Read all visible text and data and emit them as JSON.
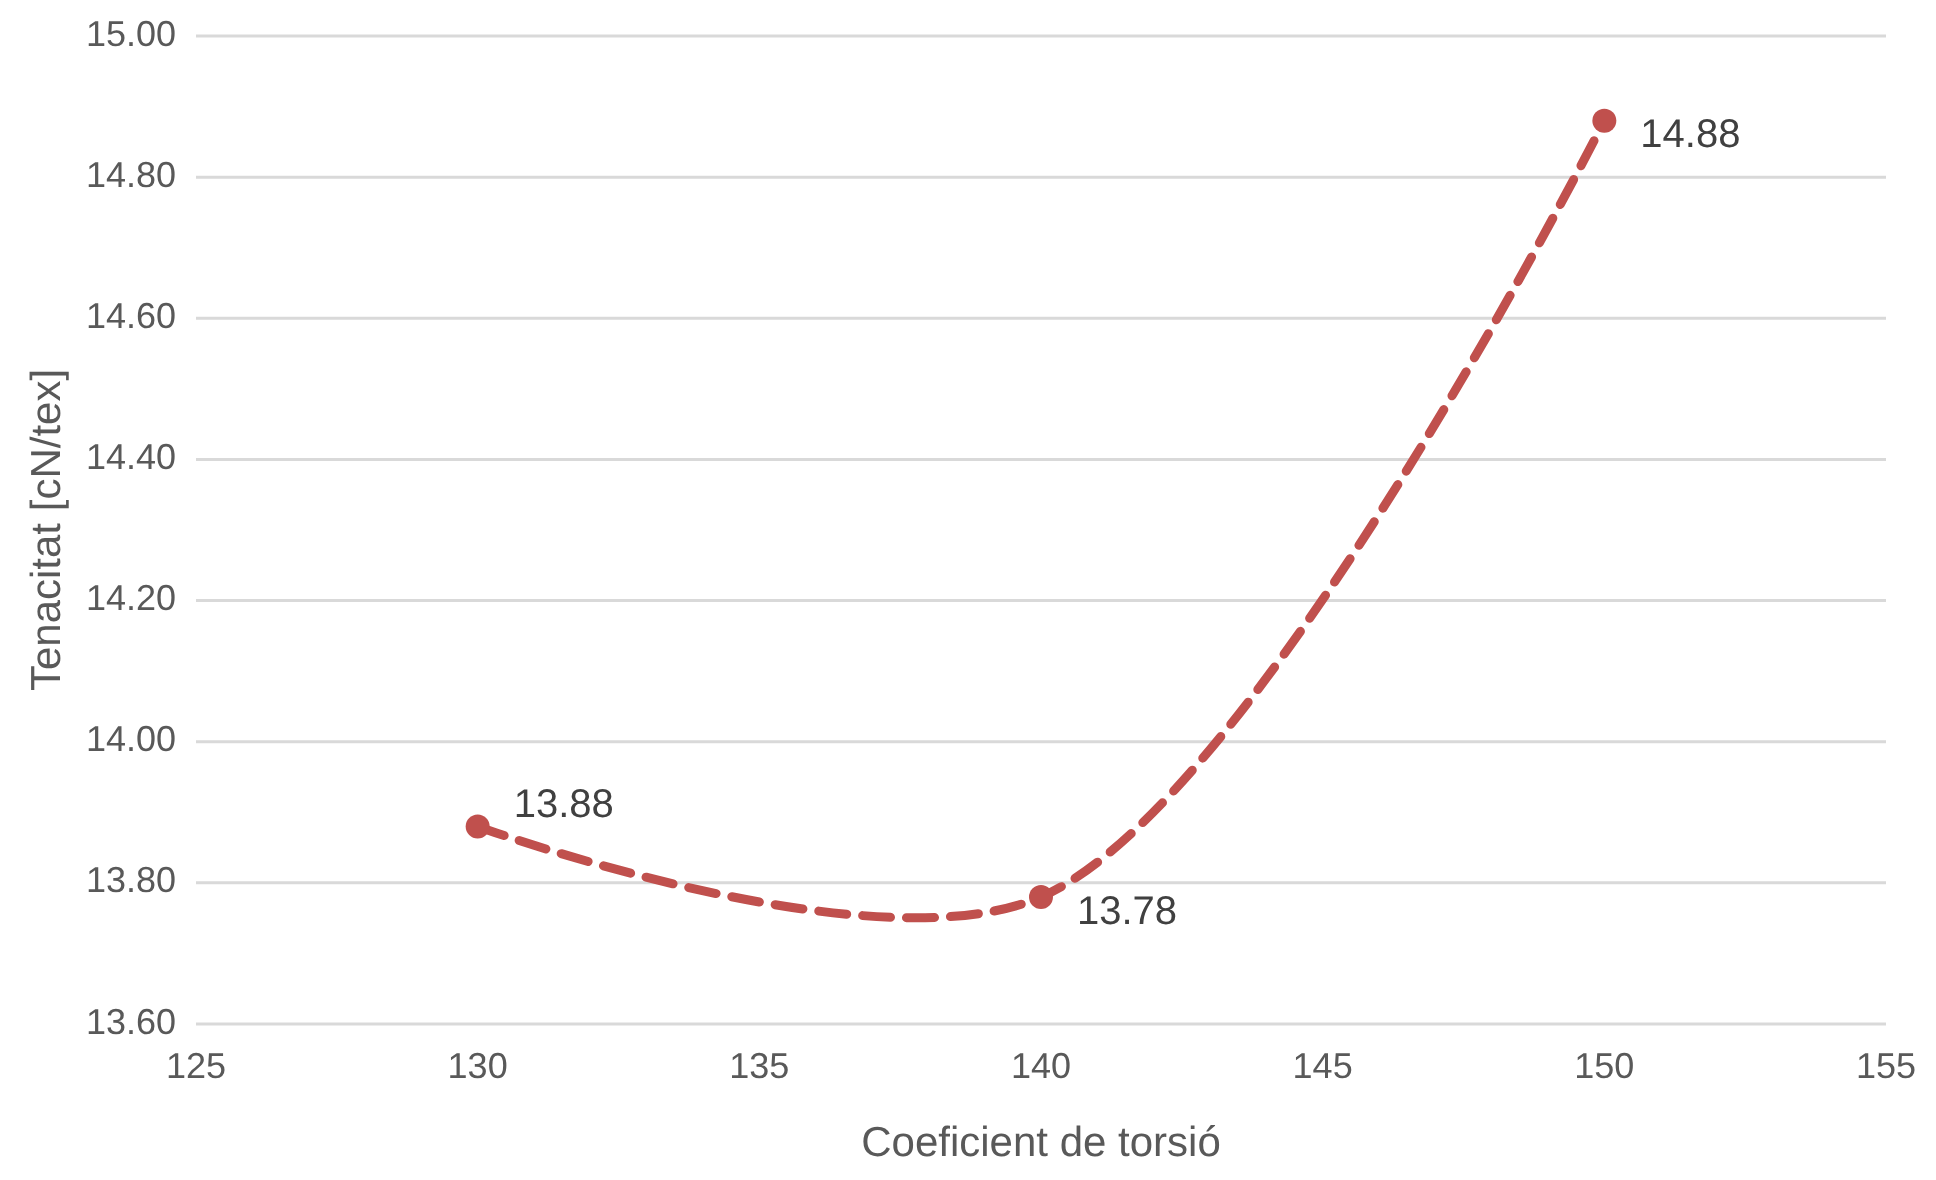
{
  "chart_data": {
    "type": "line",
    "xlabel": "Coeficient de torsió",
    "ylabel": "Tenacitat [cN/tex]",
    "x": [
      130,
      140,
      150
    ],
    "series": [
      {
        "color": "#c0504d",
        "values": [
          13.88,
          13.78,
          14.88
        ]
      }
    ],
    "xlim": [
      125,
      155
    ],
    "xticks": [
      125,
      130,
      135,
      140,
      145,
      150,
      155
    ],
    "ylim": [
      13.6,
      15.0
    ],
    "yticks": [
      {
        "value": 13.6,
        "label": "13.60"
      },
      {
        "value": 13.8,
        "label": "13.80"
      },
      {
        "value": 14.0,
        "label": "14.00"
      },
      {
        "value": 14.2,
        "label": "14.20"
      },
      {
        "value": 14.4,
        "label": "14.40"
      },
      {
        "value": 14.6,
        "label": "14.60"
      },
      {
        "value": 14.8,
        "label": "14.80"
      },
      {
        "value": 15.0,
        "label": "15.00"
      }
    ],
    "grid": "y",
    "marker": "circle",
    "line_style": "dashed",
    "data_labels": true
  }
}
